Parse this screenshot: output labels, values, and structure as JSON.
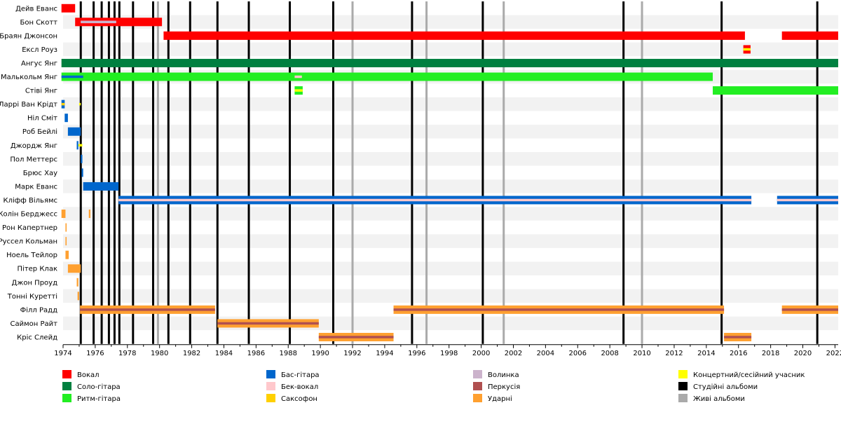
{
  "chart_data": {
    "type": "timeline",
    "xlim": [
      1974,
      2022.2
    ],
    "x_ticks": [
      1974,
      1976,
      1978,
      1980,
      1982,
      1984,
      1986,
      1988,
      1990,
      1992,
      1994,
      1996,
      1998,
      2000,
      2002,
      2004,
      2006,
      2008,
      2010,
      2012,
      2014,
      2016,
      2018,
      2020,
      2022
    ],
    "grid": "alternating row bands",
    "roles": {
      "vocals": {
        "label": "Вокал",
        "color": "#ff0000"
      },
      "lead": {
        "label": "Соло-гітара",
        "color": "#008040"
      },
      "rhythm": {
        "label": "Ритм-гітара",
        "color": "#22ee22"
      },
      "bass": {
        "label": "Бас-гітара",
        "color": "#0066cc"
      },
      "backing": {
        "label": "Бек-вокал",
        "color": "#ffc8cc"
      },
      "sax": {
        "label": "Саксофон",
        "color": "#ffd000"
      },
      "bagpipes": {
        "label": "Волинка",
        "color": "#ccb3cc"
      },
      "percussion": {
        "label": "Перкусія",
        "color": "#b05050"
      },
      "drums": {
        "label": "Ударні",
        "color": "#ffa030"
      },
      "touring": {
        "label": "Концертний/сесійний учасник",
        "color": "#ffff00"
      },
      "studio": {
        "label": "Студійні альбоми",
        "color": "#000000"
      },
      "live": {
        "label": "Живі альбоми",
        "color": "#aaaaaa"
      }
    },
    "legend_columns": [
      [
        "vocals",
        "lead",
        "rhythm"
      ],
      [
        "bass",
        "backing",
        "sax"
      ],
      [
        "bagpipes",
        "percussion",
        "drums"
      ],
      [
        "touring",
        "studio",
        "live"
      ]
    ],
    "members": [
      {
        "name": "Дейв Еванс",
        "bars": [
          {
            "role": "vocals",
            "start": 1973.9,
            "end": 1974.75
          }
        ]
      },
      {
        "name": "Бон Скотт",
        "bars": [
          {
            "role": "vocals",
            "start": 1974.75,
            "end": 1980.15
          }
        ],
        "overlays": [
          {
            "role": "backing",
            "start": 1975.1,
            "end": 1977.3
          },
          {
            "role": "bagpipes",
            "start": 1975.1,
            "end": 1977.3
          }
        ]
      },
      {
        "name": "Браян Джонсон",
        "bars": [
          {
            "role": "vocals",
            "start": 1980.25,
            "end": 2016.4
          },
          {
            "role": "vocals",
            "start": 2018.7,
            "end": 2022.2
          }
        ]
      },
      {
        "name": "Ексл Роуз",
        "bars": [
          {
            "role": "vocals",
            "start": 2016.3,
            "end": 2016.75
          }
        ],
        "overlays": [
          {
            "role": "touring",
            "start": 2016.3,
            "end": 2016.75
          }
        ]
      },
      {
        "name": "Ангус Янг",
        "bars": [
          {
            "role": "lead",
            "start": 1973.9,
            "end": 2022.2
          }
        ]
      },
      {
        "name": "Малькольм Янг",
        "bars": [
          {
            "role": "rhythm",
            "start": 1973.9,
            "end": 2014.4
          }
        ],
        "overlays": [
          {
            "role": "bass",
            "start": 1973.9,
            "end": 1975.25
          },
          {
            "role": "backing",
            "start": 1988.4,
            "end": 1988.85
          }
        ]
      },
      {
        "name": "Стіві Янг",
        "bars": [
          {
            "role": "rhythm",
            "start": 1988.4,
            "end": 1988.9
          },
          {
            "role": "rhythm",
            "start": 2014.4,
            "end": 2022.2
          }
        ],
        "overlays": [
          {
            "role": "touring",
            "start": 1988.4,
            "end": 1988.9
          }
        ]
      },
      {
        "name": "Ларрі Ван Крідт",
        "bars": [
          {
            "role": "bass",
            "start": 1973.9,
            "end": 1974.1
          }
        ],
        "overlays": [
          {
            "role": "sax",
            "start": 1973.9,
            "end": 1974.1
          },
          {
            "role": "touring",
            "start": 1975.0,
            "end": 1975.1
          }
        ]
      },
      {
        "name": "Ніл Сміт",
        "bars": [
          {
            "role": "bass",
            "start": 1974.1,
            "end": 1974.3
          }
        ]
      },
      {
        "name": "Роб Бейлі",
        "bars": [
          {
            "role": "bass",
            "start": 1974.3,
            "end": 1975.1
          }
        ]
      },
      {
        "name": "Джордж Янг",
        "bars": [
          {
            "role": "bass",
            "start": 1974.85,
            "end": 1974.95
          }
        ],
        "overlays": [
          {
            "role": "touring",
            "start": 1974.95,
            "end": 1975.2
          }
        ]
      },
      {
        "name": "Пол Меттерс",
        "bars": [
          {
            "role": "bass",
            "start": 1975.1,
            "end": 1975.2
          }
        ]
      },
      {
        "name": "Брюс Хау",
        "bars": [
          {
            "role": "bass",
            "start": 1975.15,
            "end": 1975.25
          }
        ]
      },
      {
        "name": "Марк Еванс",
        "bars": [
          {
            "role": "bass",
            "start": 1975.25,
            "end": 1977.45
          }
        ]
      },
      {
        "name": "Кліфф Вільямс",
        "bars": [
          {
            "role": "bass",
            "start": 1977.45,
            "end": 2016.8
          },
          {
            "role": "bass",
            "start": 2018.4,
            "end": 2022.2
          }
        ],
        "overlays": [
          {
            "role": "backing",
            "start": 1977.45,
            "end": 2016.8
          },
          {
            "role": "backing",
            "start": 2018.4,
            "end": 2022.2
          }
        ]
      },
      {
        "name": "Колін Берджесс",
        "bars": [
          {
            "role": "drums",
            "start": 1973.9,
            "end": 1974.15
          },
          {
            "role": "drums",
            "start": 1975.6,
            "end": 1975.7
          }
        ]
      },
      {
        "name": "Рон Капертнер",
        "bars": [
          {
            "role": "drums",
            "start": 1974.15,
            "end": 1974.22
          }
        ]
      },
      {
        "name": "Руссел Кольман",
        "bars": [
          {
            "role": "drums",
            "start": 1974.15,
            "end": 1974.22
          }
        ]
      },
      {
        "name": "Ноель Тейлор",
        "bars": [
          {
            "role": "drums",
            "start": 1974.15,
            "end": 1974.35
          }
        ]
      },
      {
        "name": "Пітер Клак",
        "bars": [
          {
            "role": "drums",
            "start": 1974.3,
            "end": 1975.1
          }
        ]
      },
      {
        "name": "Джон Проуд",
        "bars": [
          {
            "role": "drums",
            "start": 1974.85,
            "end": 1974.95
          }
        ]
      },
      {
        "name": "Тонні Куретті",
        "bars": [
          {
            "role": "drums",
            "start": 1974.9,
            "end": 1975.0
          }
        ]
      },
      {
        "name": "Філл Радд",
        "bars": [
          {
            "role": "drums",
            "start": 1975.05,
            "end": 1983.45
          },
          {
            "role": "drums",
            "start": 1994.55,
            "end": 2015.1
          },
          {
            "role": "drums",
            "start": 2018.7,
            "end": 2022.2
          }
        ],
        "overlays": [
          {
            "role": "percussion",
            "start": 1975.05,
            "end": 1983.45
          },
          {
            "role": "percussion",
            "start": 1994.55,
            "end": 2015.1
          },
          {
            "role": "percussion",
            "start": 2018.7,
            "end": 2022.2
          }
        ]
      },
      {
        "name": "Саймон Райт",
        "bars": [
          {
            "role": "drums",
            "start": 1983.6,
            "end": 1989.9
          }
        ],
        "overlays": [
          {
            "role": "percussion",
            "start": 1983.6,
            "end": 1989.9
          }
        ]
      },
      {
        "name": "Кріс Слейд",
        "bars": [
          {
            "role": "drums",
            "start": 1989.9,
            "end": 1994.55
          },
          {
            "role": "drums",
            "start": 2015.1,
            "end": 2016.8
          }
        ],
        "overlays": [
          {
            "role": "percussion",
            "start": 1989.9,
            "end": 1994.55
          },
          {
            "role": "percussion",
            "start": 2015.1,
            "end": 2016.8
          }
        ]
      }
    ],
    "studio_albums": [
      1975.1,
      1975.9,
      1976.4,
      1976.85,
      1977.2,
      1977.5,
      1978.35,
      1979.6,
      1980.55,
      1981.9,
      1983.6,
      1985.55,
      1988.1,
      1990.8,
      1995.7,
      2000.1,
      2008.85,
      2014.95,
      2020.9
    ],
    "live_albums": [
      1979.9,
      1992.0,
      1996.6,
      2001.4,
      2010.0
    ]
  }
}
